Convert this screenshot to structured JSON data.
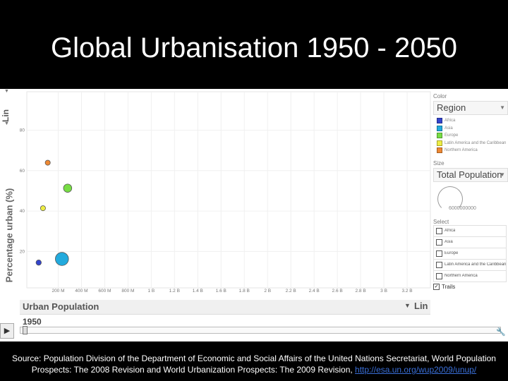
{
  "slide": {
    "title": "Global Urbanisation 1950 - 2050",
    "source_text": "Source: Population Division of the Department of Economic and Social Affairs of the United Nations Secretariat, World Population Prospects: The 2008 Revision and World Urbanization Prospects: The 2009 Revision, ",
    "source_link": "http://esa.un.org/wup2009/unup/"
  },
  "controls": {
    "y_scale": "Lin",
    "x_label": "Urban Population",
    "x_scale": "Lin",
    "year": "1950",
    "play_icon": "play-icon",
    "color_label": "Color",
    "color_value": "Region",
    "size_label": "Size",
    "size_value": "Total Population",
    "size_ref": "6000000000",
    "select_label": "Select",
    "trails_label": "Trails",
    "trails_checked": true
  },
  "colors": {
    "Africa": "#3344cc",
    "Asia": "#22aadd",
    "Europe": "#77dd44",
    "Latin America and the Caribbean": "#eeee44",
    "Northern America": "#ee8833"
  },
  "legend": [
    {
      "label": "Africa"
    },
    {
      "label": "Asia"
    },
    {
      "label": "Europe"
    },
    {
      "label": "Latin America and the Caribbean"
    },
    {
      "label": "Northern America"
    }
  ],
  "select_items": [
    "Africa",
    "Asia",
    "Europe",
    "Latin America and the Caribbean",
    "Northern America"
  ],
  "chart_data": {
    "type": "scatter",
    "title": "",
    "xlabel": "Urban Population",
    "ylabel": "Percentage urban (%)",
    "x_ticks": [
      "200 M",
      "400 M",
      "600 M",
      "800 M",
      "1 B",
      "1.2 B",
      "1.4 B",
      "1.6 B",
      "1.8 B",
      "2 B",
      "2.2 B",
      "2.4 B",
      "2.6 B",
      "2.8 B",
      "3 B",
      "3.2 B"
    ],
    "x_tick_values": [
      200,
      400,
      600,
      800,
      1000,
      1200,
      1400,
      1600,
      1800,
      2000,
      2200,
      2400,
      2600,
      2800,
      3000,
      3200
    ],
    "y_ticks": [
      "20",
      "40",
      "60",
      "80"
    ],
    "y_tick_values": [
      20,
      40,
      60,
      80
    ],
    "xlim": [
      -70,
      3400
    ],
    "ylim": [
      2,
      99
    ],
    "year": 1950,
    "series": [
      {
        "name": "Africa",
        "x": 32,
        "y": 14.5,
        "size": 227
      },
      {
        "name": "Asia",
        "x": 232,
        "y": 16.3,
        "size": 1395
      },
      {
        "name": "Europe",
        "x": 281,
        "y": 51.3,
        "size": 547
      },
      {
        "name": "Latin America and the Caribbean",
        "x": 69,
        "y": 41.4,
        "size": 167
      },
      {
        "name": "Northern America",
        "x": 110,
        "y": 63.9,
        "size": 172
      }
    ]
  }
}
